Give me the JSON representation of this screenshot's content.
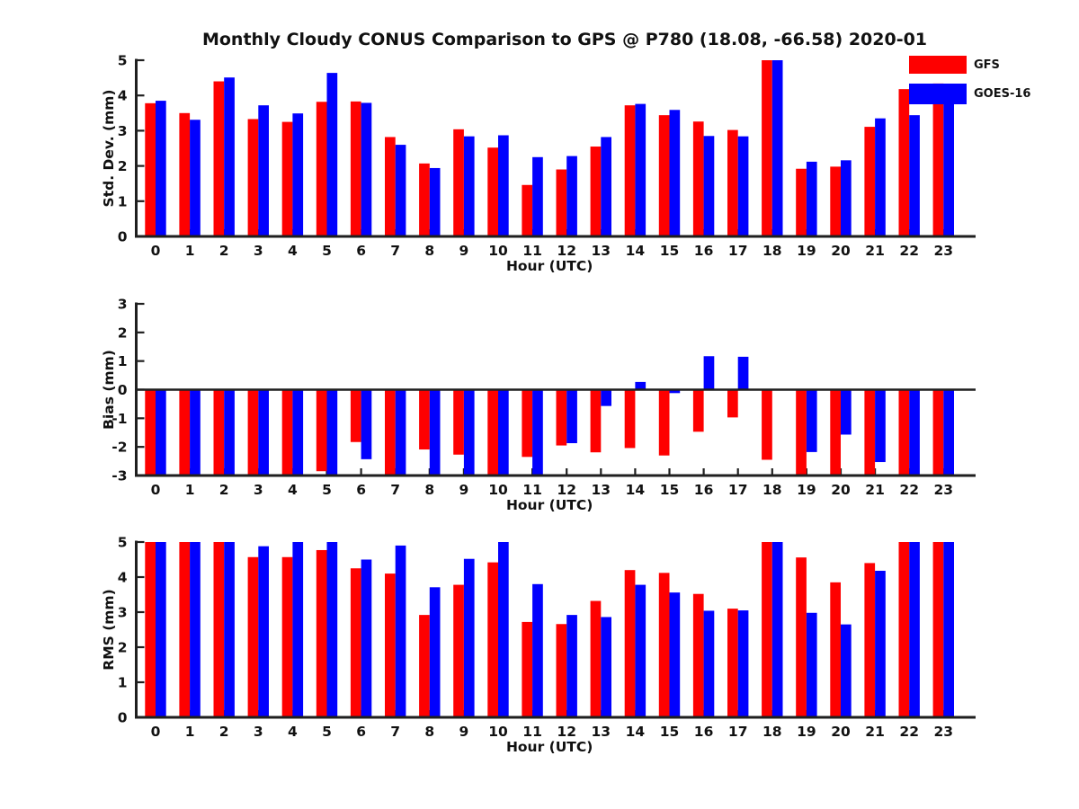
{
  "title": "Monthly Cloudy CONUS Comparison to GPS @ P780 (18.08, -66.58) 2020-01",
  "legend": {
    "position": "top-right",
    "items": [
      {
        "label": "GFS",
        "color": "#fe0000"
      },
      {
        "label": "GOES-16",
        "color": "#0100fe"
      }
    ]
  },
  "colors": {
    "gfs_red": "#fe0000",
    "goes16_blue": "#0100fe",
    "axis": "#1f1f1f",
    "text": "#111111",
    "background": "#ffffff"
  },
  "chart_data": [
    {
      "id": "std-dev",
      "type": "bar",
      "ylabel": "Std. Dev. (mm)",
      "xlabel": "Hour (UTC)",
      "ylim": [
        0,
        5
      ],
      "yticks": [
        0,
        1,
        2,
        3,
        4,
        5
      ],
      "grid": false,
      "baseline": 0,
      "categories": [
        "0",
        "1",
        "2",
        "3",
        "4",
        "5",
        "6",
        "7",
        "8",
        "9",
        "10",
        "11",
        "12",
        "13",
        "14",
        "15",
        "16",
        "17",
        "18",
        "19",
        "20",
        "21",
        "22",
        "23"
      ],
      "series": [
        {
          "name": "GFS",
          "color": "#fe0000",
          "values": [
            3.78,
            3.5,
            4.4,
            3.33,
            3.25,
            3.82,
            3.83,
            2.82,
            2.07,
            3.04,
            2.52,
            1.46,
            1.9,
            2.55,
            3.72,
            3.44,
            3.26,
            3.02,
            5.0,
            1.92,
            1.98,
            3.11,
            4.18,
            4.34
          ]
        },
        {
          "name": "GOES-16",
          "color": "#0100fe",
          "values": [
            3.85,
            3.31,
            4.51,
            3.72,
            3.49,
            4.64,
            3.79,
            2.6,
            1.94,
            2.84,
            2.87,
            2.25,
            2.28,
            2.82,
            3.76,
            3.59,
            2.85,
            2.84,
            5.0,
            2.12,
            2.16,
            3.35,
            3.44,
            4.1
          ]
        }
      ]
    },
    {
      "id": "bias",
      "type": "bar",
      "ylabel": "Bias (mm)",
      "xlabel": "Hour (UTC)",
      "ylim": [
        -3,
        3
      ],
      "yticks": [
        -3,
        -2,
        -1,
        0,
        1,
        2,
        3
      ],
      "grid": false,
      "baseline": 0,
      "zero_line": true,
      "note": "bars reaching -3 are clipped at axis bottom",
      "categories": [
        "0",
        "1",
        "2",
        "3",
        "4",
        "5",
        "6",
        "7",
        "8",
        "9",
        "10",
        "11",
        "12",
        "13",
        "14",
        "15",
        "16",
        "17",
        "18",
        "19",
        "20",
        "21",
        "22",
        "23"
      ],
      "series": [
        {
          "name": "GFS",
          "color": "#fe0000",
          "values": [
            -3,
            -3,
            -3,
            -3,
            -3,
            -2.85,
            -1.83,
            -3,
            -2.09,
            -2.27,
            -3,
            -2.35,
            -1.95,
            -2.19,
            -2.04,
            -2.3,
            -1.47,
            -0.97,
            -2.45,
            -3,
            -3,
            -3,
            -3,
            -3
          ]
        },
        {
          "name": "GOES-16",
          "color": "#0100fe",
          "values": [
            -3,
            -3,
            -3,
            -3,
            -3,
            -3,
            -2.43,
            -3,
            -3,
            -3,
            -3,
            -3,
            -1.87,
            -0.57,
            0.27,
            -0.12,
            1.17,
            1.15,
            0,
            -2.18,
            -1.57,
            -2.53,
            -3,
            -3
          ]
        }
      ]
    },
    {
      "id": "rms",
      "type": "bar",
      "ylabel": "RMS (mm)",
      "xlabel": "Hour (UTC)",
      "ylim": [
        0,
        5
      ],
      "yticks": [
        0,
        1,
        2,
        3,
        4,
        5
      ],
      "grid": false,
      "baseline": 0,
      "note": "bars at 5 are clipped at axis top",
      "categories": [
        "0",
        "1",
        "2",
        "3",
        "4",
        "5",
        "6",
        "7",
        "8",
        "9",
        "10",
        "11",
        "12",
        "13",
        "14",
        "15",
        "16",
        "17",
        "18",
        "19",
        "20",
        "21",
        "22",
        "23"
      ],
      "series": [
        {
          "name": "GFS",
          "color": "#fe0000",
          "values": [
            5.0,
            5.0,
            5.0,
            4.57,
            4.57,
            4.77,
            4.25,
            4.1,
            2.92,
            3.78,
            4.42,
            2.72,
            2.66,
            3.32,
            4.2,
            4.12,
            3.52,
            3.1,
            5.0,
            4.56,
            3.85,
            4.4,
            5.0,
            5.0
          ]
        },
        {
          "name": "GOES-16",
          "color": "#0100fe",
          "values": [
            5.0,
            5.0,
            5.0,
            4.88,
            5.0,
            5.0,
            4.5,
            4.9,
            3.71,
            4.52,
            5.0,
            3.8,
            2.92,
            2.86,
            3.78,
            3.56,
            3.04,
            3.05,
            5.0,
            2.98,
            2.65,
            4.18,
            5.0,
            5.0
          ]
        }
      ]
    }
  ]
}
